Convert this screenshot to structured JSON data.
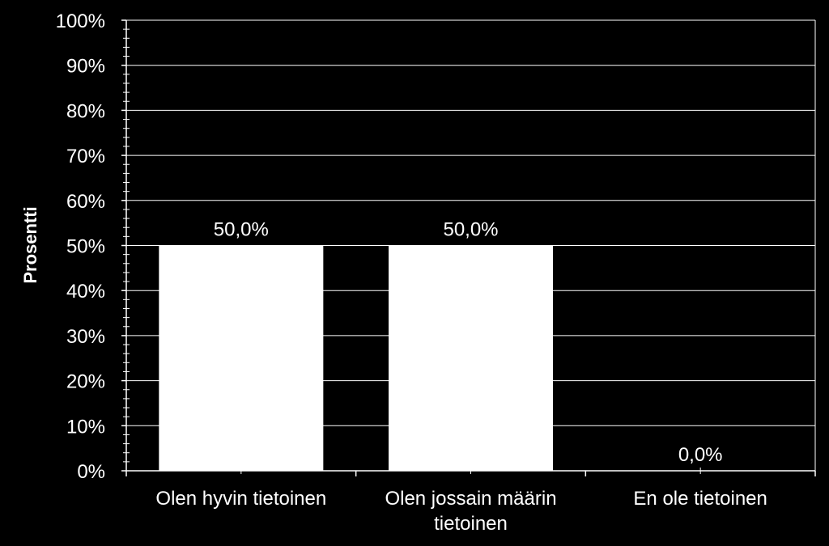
{
  "chart_data": {
    "type": "bar",
    "categories": [
      [
        "Olen hyvin tietoinen"
      ],
      [
        "Olen jossain määrin",
        "tietoinen"
      ],
      [
        "En ole tietoinen"
      ]
    ],
    "values": [
      50.0,
      50.0,
      0.0
    ],
    "data_labels": [
      "50,0%",
      "50,0%",
      "0,0%"
    ],
    "ylabel": "Prosentti",
    "ylim": [
      0,
      100
    ],
    "yticks": [
      0,
      10,
      20,
      30,
      40,
      50,
      60,
      70,
      80,
      90,
      100
    ],
    "ytick_labels": [
      "0%",
      "10%",
      "20%",
      "30%",
      "40%",
      "50%",
      "60%",
      "70%",
      "80%",
      "90%",
      "100%"
    ],
    "grid": true,
    "legend": "none",
    "colors": {
      "background": "#000000",
      "bar": "#ffffff",
      "grid": "#ffffff",
      "text": "#ffffff"
    }
  }
}
